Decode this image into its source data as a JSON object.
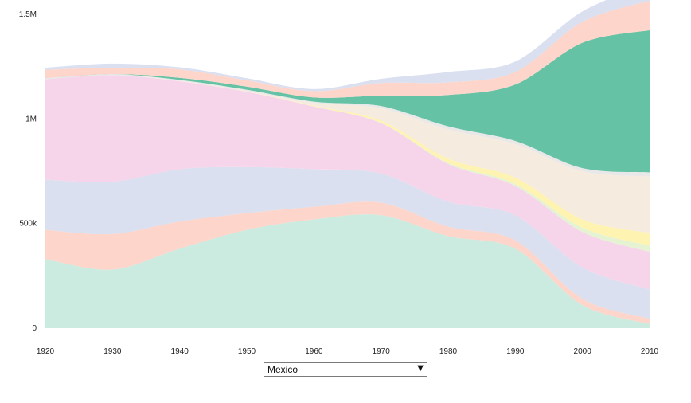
{
  "chart_data": {
    "type": "area",
    "stacked": true,
    "curve": "smooth",
    "x": [
      1920,
      1930,
      1940,
      1950,
      1960,
      1970,
      1980,
      1990,
      2000,
      2010
    ],
    "ylim": [
      0,
      1550000
    ],
    "y_ticks": [
      0,
      500000,
      1000000,
      1500000
    ],
    "y_tick_labels": [
      "0",
      "500k",
      "1M",
      "1.5M"
    ],
    "x_tick_labels": [
      "1920",
      "1930",
      "1940",
      "1950",
      "1960",
      "1970",
      "1980",
      "1990",
      "2000",
      "2010"
    ],
    "series": [
      {
        "color": "#cbebe0",
        "values": [
          330000,
          280000,
          380000,
          470000,
          520000,
          540000,
          440000,
          380000,
          110000,
          20000
        ]
      },
      {
        "color": "#fdd5ca",
        "values": [
          140000,
          170000,
          130000,
          80000,
          60000,
          60000,
          45000,
          40000,
          30000,
          25000
        ]
      },
      {
        "color": "#dae0ef",
        "values": [
          240000,
          250000,
          250000,
          220000,
          180000,
          140000,
          120000,
          120000,
          150000,
          140000
        ]
      },
      {
        "color": "#f6d5ea",
        "values": [
          480000,
          510000,
          420000,
          360000,
          300000,
          240000,
          180000,
          140000,
          170000,
          180000
        ]
      },
      {
        "color": "#e5f3d3",
        "values": [
          0,
          0,
          0,
          0,
          0,
          2000,
          5000,
          10000,
          20000,
          30000
        ]
      },
      {
        "color": "#fef3b1",
        "values": [
          0,
          0,
          0,
          0,
          3000,
          10000,
          20000,
          30000,
          40000,
          60000
        ]
      },
      {
        "color": "#f5ebdf",
        "values": [
          0,
          0,
          2000,
          5000,
          15000,
          60000,
          140000,
          160000,
          230000,
          270000
        ]
      },
      {
        "color": "#e8e8e8",
        "values": [
          5000,
          5000,
          5000,
          5000,
          5000,
          10000,
          15000,
          15000,
          15000,
          20000
        ]
      },
      {
        "color": "#66c2a5",
        "values": [
          0,
          0,
          10000,
          15000,
          20000,
          50000,
          150000,
          270000,
          600000,
          680000
        ]
      },
      {
        "color": "#fdd5ca",
        "values": [
          40000,
          30000,
          40000,
          30000,
          30000,
          60000,
          60000,
          60000,
          100000,
          140000
        ]
      },
      {
        "color": "#dae0ef",
        "values": [
          10000,
          20000,
          10000,
          10000,
          10000,
          20000,
          50000,
          50000,
          50000,
          80000
        ]
      }
    ]
  },
  "country_select": {
    "value": "Mexico"
  }
}
